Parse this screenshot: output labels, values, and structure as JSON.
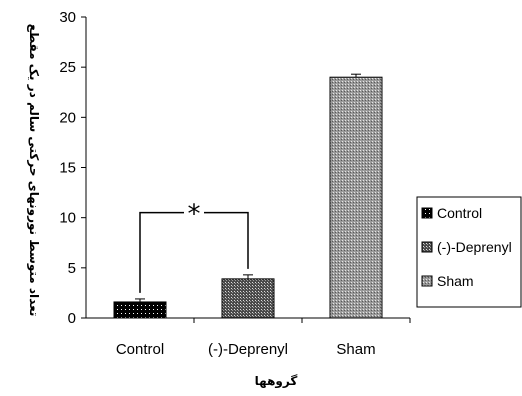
{
  "chart_data": {
    "type": "bar",
    "categories": [
      "Control",
      "(-)-Deprenyl",
      "Sham"
    ],
    "values": [
      1.6,
      3.9,
      24.0
    ],
    "errors": [
      0.3,
      0.4,
      0.3
    ],
    "ylim": [
      0,
      30
    ],
    "yticks": [
      0,
      5,
      10,
      15,
      20,
      25,
      30
    ],
    "xlabel": "گروهها",
    "ylabel": "تعداد متوسط نورونهای حرکتی سالم در یک مقطع",
    "legend": [
      "Control",
      "(-)-Deprenyl",
      "Sham"
    ],
    "legend_position": "right",
    "significance": {
      "between": [
        "Control",
        "(-)-Deprenyl"
      ],
      "symbol": "*"
    },
    "grid": false
  }
}
